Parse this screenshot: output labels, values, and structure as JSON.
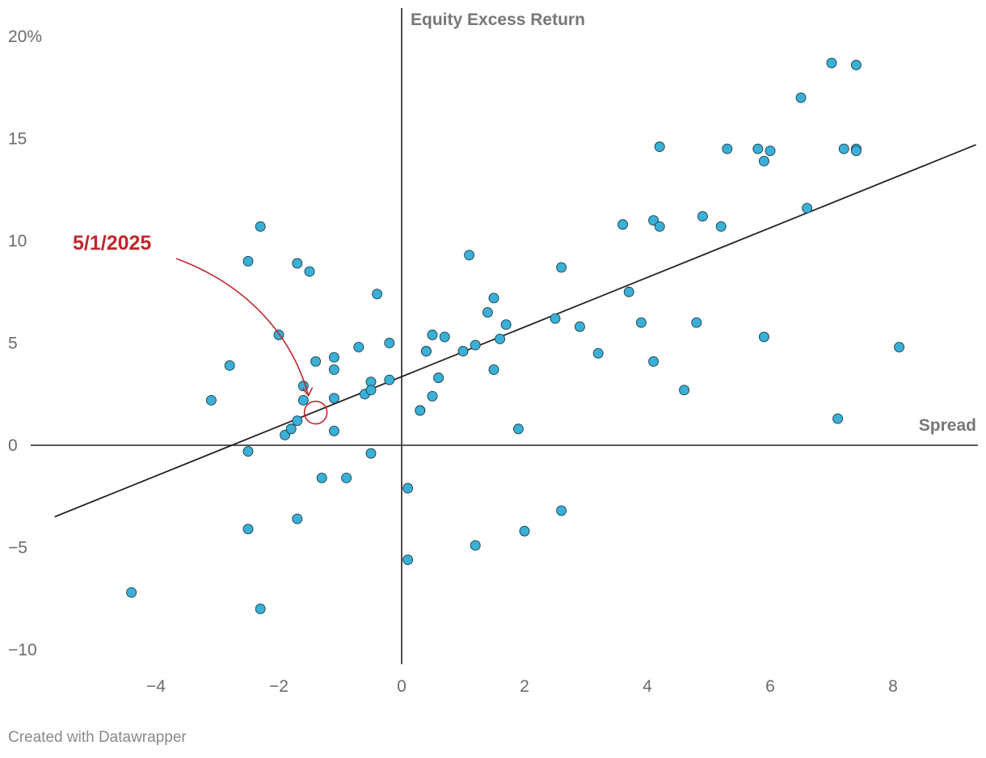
{
  "chart_data": {
    "type": "scatter",
    "xlabel": "Spread",
    "ylabel": "Equity Excess Return",
    "xlim": [
      -5.7,
      9.4
    ],
    "ylim": [
      -10.6,
      20.6
    ],
    "x_ticks": [
      -4,
      -2,
      0,
      2,
      4,
      6,
      8
    ],
    "x_tick_labels": [
      "−4",
      "−2",
      "0",
      "2",
      "4",
      "6",
      "8"
    ],
    "y_ticks": [
      20,
      15,
      10,
      5,
      0,
      -5,
      -10
    ],
    "y_tick_labels": [
      "20%",
      "15",
      "10",
      "5",
      "0",
      "−5",
      "−10"
    ],
    "grid": false,
    "point_color": "#3ab0d6",
    "point_stroke": "#1c3a4a",
    "trendline": {
      "x1": -5.65,
      "y1": -3.5,
      "x2": 9.35,
      "y2": 14.7,
      "color": "#222222"
    },
    "annotation": {
      "label": "5/1/2025",
      "x": -1.4,
      "y": 1.6,
      "color": "#c0272d"
    },
    "points": [
      [
        -4.4,
        -7.2
      ],
      [
        -3.1,
        2.2
      ],
      [
        -2.8,
        3.9
      ],
      [
        -2.5,
        -0.3
      ],
      [
        -2.5,
        -4.1
      ],
      [
        -2.5,
        9.0
      ],
      [
        -2.3,
        10.7
      ],
      [
        -2.3,
        -8.0
      ],
      [
        -2.0,
        5.4
      ],
      [
        -1.9,
        0.5
      ],
      [
        -1.8,
        0.8
      ],
      [
        -1.7,
        1.2
      ],
      [
        -1.7,
        8.9
      ],
      [
        -1.7,
        -3.6
      ],
      [
        -1.6,
        2.9
      ],
      [
        -1.6,
        2.2
      ],
      [
        -1.5,
        8.5
      ],
      [
        -1.4,
        4.1
      ],
      [
        -1.3,
        -1.6
      ],
      [
        -1.1,
        4.3
      ],
      [
        -1.1,
        3.7
      ],
      [
        -1.1,
        2.3
      ],
      [
        -1.1,
        0.7
      ],
      [
        -0.9,
        -1.6
      ],
      [
        -0.7,
        4.8
      ],
      [
        -0.6,
        2.5
      ],
      [
        -0.5,
        3.1
      ],
      [
        -0.5,
        2.7
      ],
      [
        -0.5,
        -0.4
      ],
      [
        -0.4,
        7.4
      ],
      [
        -0.2,
        5.0
      ],
      [
        -0.2,
        3.2
      ],
      [
        0.1,
        -2.1
      ],
      [
        0.1,
        -5.6
      ],
      [
        0.3,
        1.7
      ],
      [
        0.3,
        1.7
      ],
      [
        0.4,
        4.6
      ],
      [
        0.4,
        4.6
      ],
      [
        0.5,
        5.4
      ],
      [
        0.5,
        2.4
      ],
      [
        0.6,
        3.3
      ],
      [
        0.7,
        5.3
      ],
      [
        1.0,
        4.6
      ],
      [
        1.1,
        9.3
      ],
      [
        1.2,
        4.9
      ],
      [
        1.2,
        -4.9
      ],
      [
        1.4,
        6.5
      ],
      [
        1.5,
        7.2
      ],
      [
        1.5,
        3.7
      ],
      [
        1.6,
        5.2
      ],
      [
        1.7,
        5.9
      ],
      [
        1.9,
        0.8
      ],
      [
        2.0,
        -4.2
      ],
      [
        2.5,
        6.2
      ],
      [
        2.6,
        8.7
      ],
      [
        2.6,
        -3.2
      ],
      [
        2.9,
        5.8
      ],
      [
        3.2,
        4.5
      ],
      [
        3.6,
        10.8
      ],
      [
        3.7,
        7.5
      ],
      [
        3.9,
        6.0
      ],
      [
        4.1,
        11.0
      ],
      [
        4.1,
        4.1
      ],
      [
        4.2,
        14.6
      ],
      [
        4.2,
        10.7
      ],
      [
        4.6,
        2.7
      ],
      [
        4.8,
        6.0
      ],
      [
        4.9,
        11.2
      ],
      [
        5.2,
        10.7
      ],
      [
        5.3,
        14.5
      ],
      [
        5.8,
        14.5
      ],
      [
        5.9,
        13.9
      ],
      [
        5.9,
        5.3
      ],
      [
        6.0,
        14.4
      ],
      [
        6.5,
        17.0
      ],
      [
        6.6,
        11.6
      ],
      [
        7.0,
        18.7
      ],
      [
        7.1,
        1.3
      ],
      [
        7.2,
        14.5
      ],
      [
        7.4,
        18.6
      ],
      [
        7.4,
        14.5
      ],
      [
        7.4,
        14.4
      ],
      [
        8.1,
        4.8
      ]
    ]
  },
  "footer": {
    "credit": "Created with Datawrapper"
  }
}
